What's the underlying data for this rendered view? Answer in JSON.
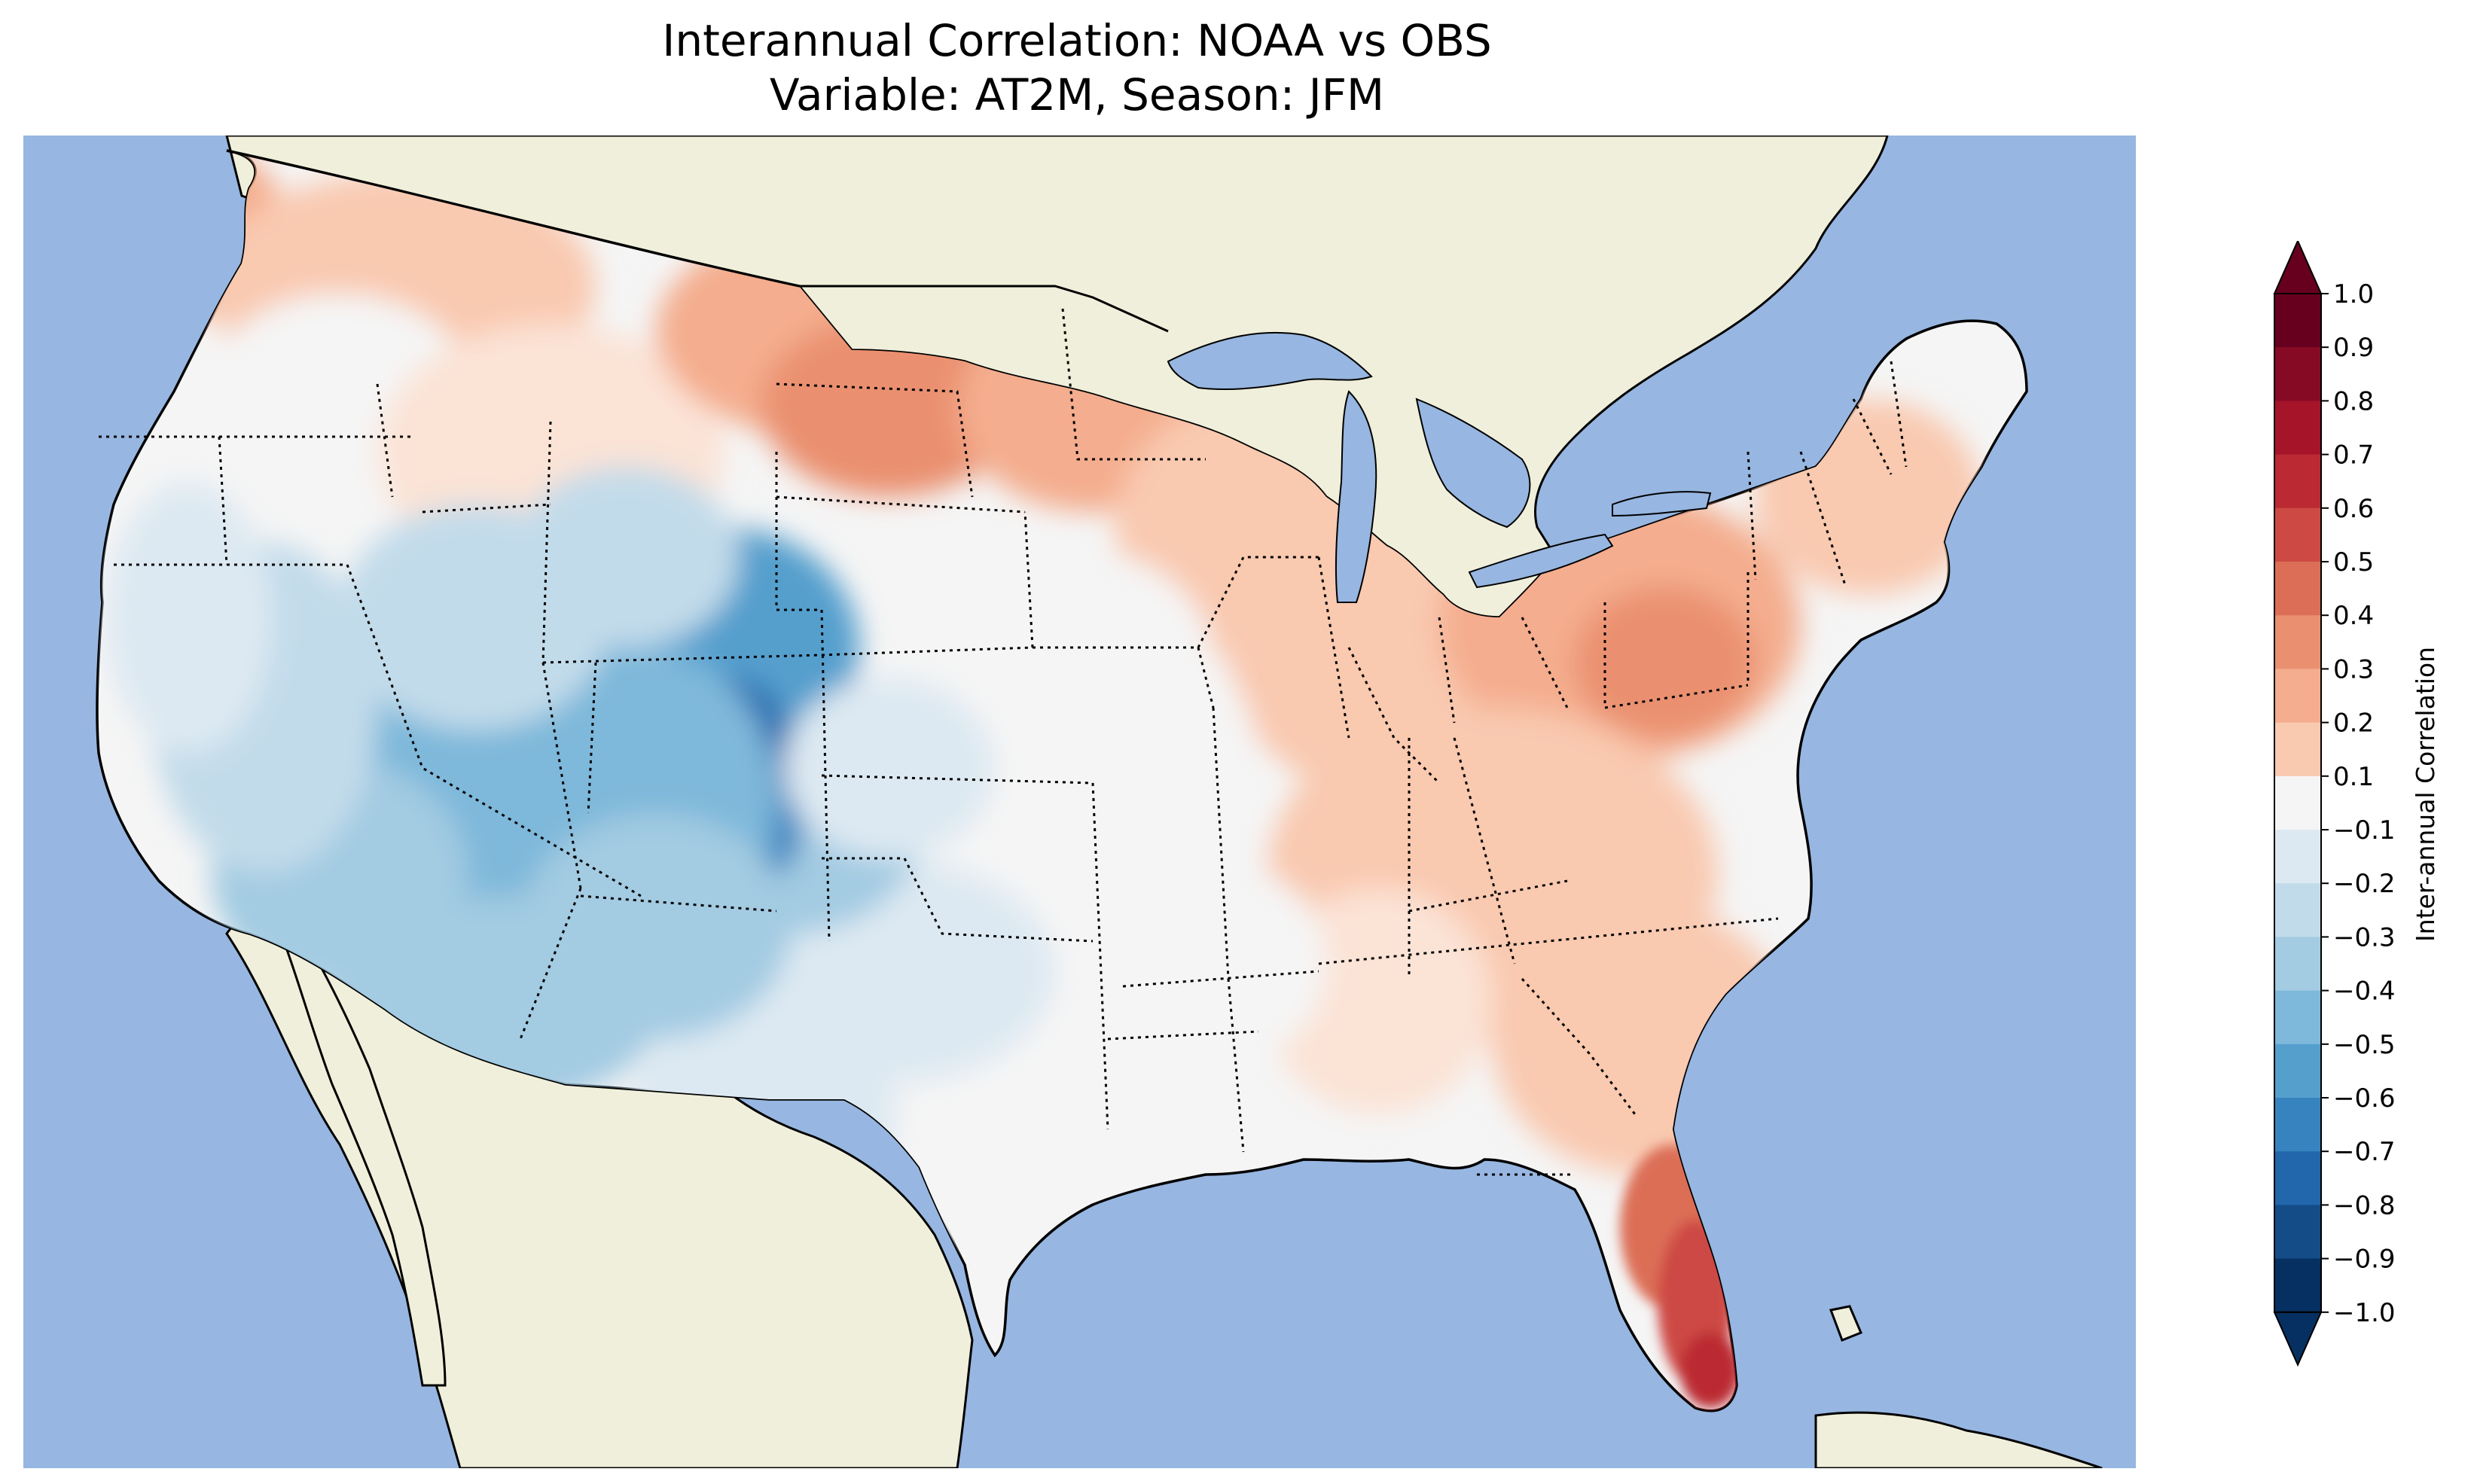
{
  "title": {
    "line1": "Interannual Correlation: NOAA vs OBS",
    "line2": "Variable: AT2M, Season: JFM"
  },
  "map": {
    "ocean_color": "#97b6e1",
    "land_color": "#efefdb",
    "region": "Contiguous United States"
  },
  "colorbar": {
    "label": "Inter-annual Correlation",
    "ticks": [
      "1.0",
      "0.9",
      "0.8",
      "0.7",
      "0.6",
      "0.5",
      "0.4",
      "0.3",
      "0.2",
      "0.1",
      "−0.1",
      "−0.2",
      "−0.3",
      "−0.4",
      "−0.5",
      "−0.6",
      "−0.7",
      "−0.8",
      "−0.9",
      "−1.0"
    ],
    "colors_top_to_bottom": [
      "#67001f",
      "#870a24",
      "#a51429",
      "#bb2a33",
      "#cd4a44",
      "#dc6e57",
      "#ea9070",
      "#f4ad8e",
      "#f9c9b0",
      "#fbe3d6",
      "#f5f5f5",
      "#dde9f2",
      "#c2dbea",
      "#a3cbe2",
      "#7eb8da",
      "#559fcd",
      "#3783bf",
      "#2266ac",
      "#144c88",
      "#053061"
    ]
  },
  "chart_data": {
    "type": "heatmap",
    "title": "Interannual Correlation: NOAA vs OBS",
    "subtitle": "Variable: AT2M, Season: JFM",
    "colorbar_label": "Inter-annual Correlation",
    "vmin": -1.0,
    "vmax": 1.0,
    "levels": [
      -1.0,
      -0.9,
      -0.8,
      -0.7,
      -0.6,
      -0.5,
      -0.4,
      -0.3,
      -0.2,
      -0.1,
      0.1,
      0.2,
      0.3,
      0.4,
      0.5,
      0.6,
      0.7,
      0.8,
      0.9,
      1.0
    ],
    "cmap": "RdBu_r",
    "extend": "both",
    "regional_values": [
      {
        "region": "Florida Peninsula",
        "value": 0.65
      },
      {
        "region": "North Dakota",
        "value": 0.45
      },
      {
        "region": "Pennsylvania",
        "value": 0.4
      },
      {
        "region": "Pacific Northwest Coast",
        "value": 0.35
      },
      {
        "region": "Southeast",
        "value": 0.3
      },
      {
        "region": "Upper Midwest",
        "value": 0.35
      },
      {
        "region": "Lower Mississippi Valley",
        "value": 0.0
      },
      {
        "region": "Texas",
        "value": -0.15
      },
      {
        "region": "California",
        "value": -0.35
      },
      {
        "region": "Arizona",
        "value": -0.5
      },
      {
        "region": "Colorado",
        "value": -0.75
      }
    ]
  }
}
